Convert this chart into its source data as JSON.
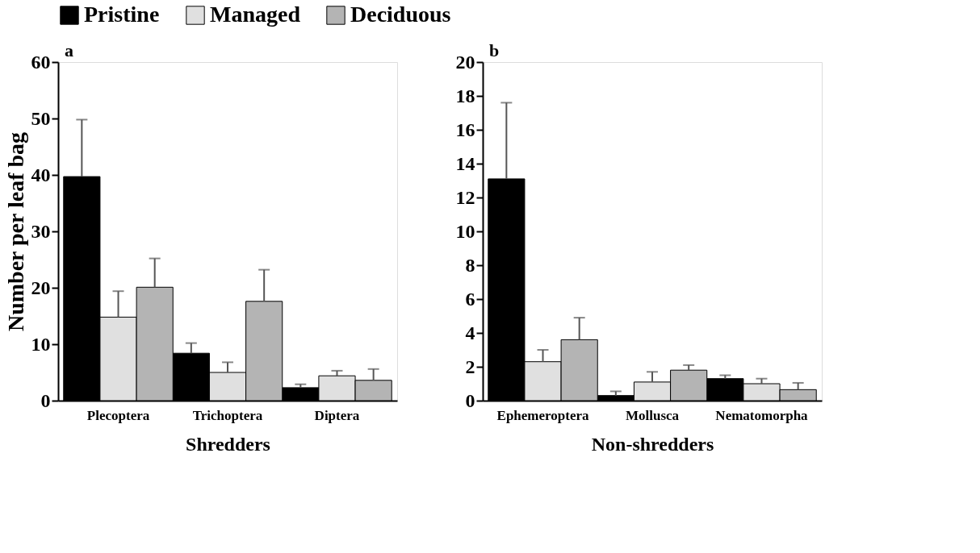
{
  "chart_data": [
    {
      "type": "bar",
      "categories": [
        "Plecoptera",
        "Trichoptera",
        "Diptera"
      ],
      "xlabel": "Shredders",
      "ylabel": "Number per leaf bag",
      "annotations": [
        "a"
      ],
      "legend": "top",
      "grid": false,
      "ylim": [
        0,
        60
      ],
      "yticks": [
        0,
        10,
        20,
        30,
        40,
        50,
        60
      ],
      "series": [
        {
          "name": "Pristine",
          "color": "#000000",
          "values": [
            39.7,
            8.4,
            2.3
          ],
          "errors": [
            [
              39.7,
              49.8
            ],
            [
              8.4,
              10.2
            ],
            [
              2.3,
              2.9
            ]
          ]
        },
        {
          "name": "Managed",
          "color": "#e0e0e0",
          "values": [
            14.8,
            5.0,
            4.4
          ],
          "errors": [
            [
              14.8,
              19.4
            ],
            [
              5.0,
              6.8
            ],
            [
              4.4,
              5.3
            ]
          ]
        },
        {
          "name": "Deciduous",
          "color": "#b4b4b4",
          "values": [
            20.1,
            17.6,
            3.6
          ],
          "errors": [
            [
              20.1,
              25.2
            ],
            [
              17.6,
              23.2
            ],
            [
              3.6,
              5.6
            ]
          ]
        }
      ]
    },
    {
      "type": "bar",
      "categories": [
        "Ephemeroptera",
        "Mollusca",
        "Nematomorpha"
      ],
      "xlabel": "Non-shredders",
      "annotations": [
        "b"
      ],
      "grid": false,
      "ylim": [
        0,
        20
      ],
      "yticks": [
        0,
        2,
        4,
        6,
        8,
        10,
        12,
        14,
        16,
        18,
        20
      ],
      "series": [
        {
          "name": "Pristine",
          "color": "#000000",
          "values": [
            13.1,
            0.3,
            1.3
          ],
          "errors": [
            [
              13.1,
              17.6
            ],
            [
              0.3,
              0.55
            ],
            [
              1.3,
              1.5
            ]
          ]
        },
        {
          "name": "Managed",
          "color": "#e0e0e0",
          "values": [
            2.3,
            1.1,
            1.0
          ],
          "errors": [
            [
              2.3,
              3.0
            ],
            [
              1.1,
              1.7
            ],
            [
              1.0,
              1.3
            ]
          ]
        },
        {
          "name": "Deciduous",
          "color": "#b4b4b4",
          "values": [
            3.6,
            1.8,
            0.65
          ],
          "errors": [
            [
              3.6,
              4.9
            ],
            [
              1.8,
              2.1
            ],
            [
              0.65,
              1.05
            ]
          ]
        }
      ]
    }
  ]
}
